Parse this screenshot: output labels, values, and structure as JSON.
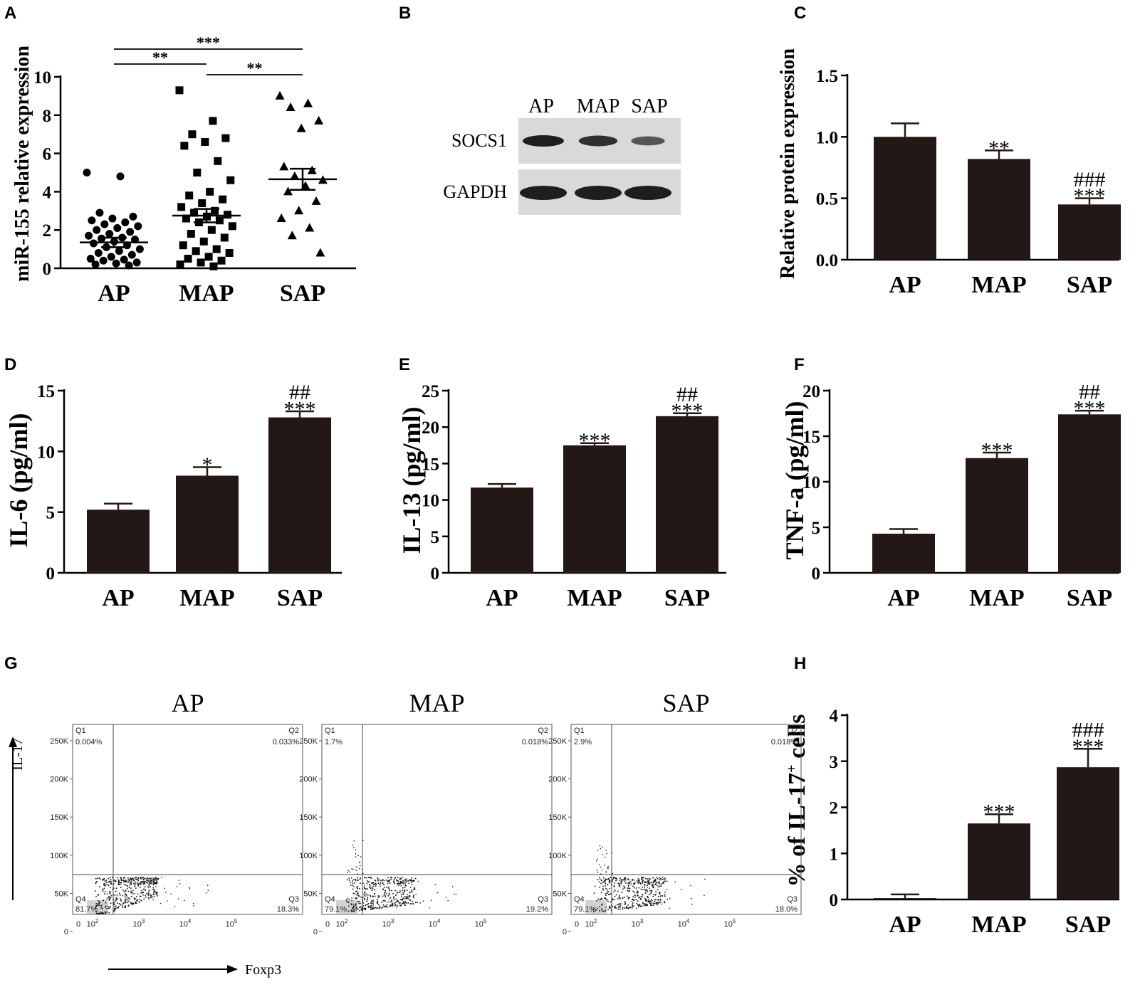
{
  "colors": {
    "bar": "#231815",
    "axis": "#000000",
    "blot_bg": "#d9d9d9",
    "band": "#141414"
  },
  "chart_data": [
    {
      "panel": "A",
      "type": "scatter",
      "ylabel": "miR-155 relative expression",
      "categories": [
        "AP",
        "MAP",
        "SAP"
      ],
      "ylim": [
        0,
        10
      ],
      "yticks": [
        "0",
        "2",
        "4",
        "6",
        "8",
        "10"
      ],
      "markers": [
        "circle",
        "square",
        "triangle"
      ],
      "means": [
        1.35,
        2.75,
        4.65
      ],
      "sem": [
        0.25,
        0.35,
        0.55
      ],
      "points": [
        [
          5.0,
          4.8,
          2.9,
          2.7,
          2.6,
          2.5,
          2.4,
          2.3,
          2.2,
          2.1,
          2.0,
          1.9,
          1.8,
          1.7,
          1.6,
          1.55,
          1.5,
          1.4,
          1.3,
          1.2,
          1.1,
          1.0,
          0.9,
          0.8,
          0.7,
          0.6,
          0.5,
          0.45,
          0.4,
          0.3,
          0.25,
          0.2,
          0.15
        ],
        [
          9.3,
          7.7,
          7.0,
          6.8,
          6.6,
          6.4,
          5.6,
          5.0,
          4.6,
          4.0,
          3.8,
          3.6,
          3.4,
          3.2,
          3.0,
          2.9,
          2.8,
          2.7,
          2.6,
          2.5,
          2.4,
          2.2,
          2.0,
          1.8,
          1.6,
          1.4,
          1.2,
          1.0,
          0.9,
          0.8,
          0.6,
          0.5,
          0.4,
          0.3,
          0.2,
          0.1
        ],
        [
          9.0,
          8.6,
          8.4,
          7.7,
          7.3,
          5.3,
          5.1,
          4.8,
          4.6,
          4.3,
          4.0,
          3.5,
          3.0,
          2.6,
          2.1,
          1.7,
          0.8
        ]
      ],
      "significance": [
        {
          "pair": [
            "AP",
            "SAP"
          ],
          "label": "***"
        },
        {
          "pair": [
            "AP",
            "MAP"
          ],
          "label": "**"
        },
        {
          "pair": [
            "MAP",
            "SAP"
          ],
          "label": "**"
        }
      ]
    },
    {
      "panel": "C",
      "type": "bar",
      "ylabel": "Relative protein expression",
      "categories": [
        "AP",
        "MAP",
        "SAP"
      ],
      "ylim": [
        0,
        1.5
      ],
      "yticks": [
        "0.0",
        "0.5",
        "1.0",
        "1.5"
      ],
      "values": [
        1.0,
        0.82,
        0.45
      ],
      "errors": [
        0.11,
        0.07,
        0.05
      ],
      "annotations": [
        "",
        "**",
        "***"
      ],
      "annotations2": [
        "",
        "",
        "###"
      ]
    },
    {
      "panel": "D",
      "type": "bar",
      "ylabel": "IL-6 (pg/ml)",
      "categories": [
        "AP",
        "MAP",
        "SAP"
      ],
      "ylim": [
        0,
        15
      ],
      "yticks": [
        "0",
        "5",
        "10",
        "15"
      ],
      "values": [
        5.2,
        8.0,
        12.8
      ],
      "errors": [
        0.5,
        0.7,
        0.5
      ],
      "annotations": [
        "",
        "*",
        "***"
      ],
      "annotations2": [
        "",
        "",
        "##"
      ]
    },
    {
      "panel": "E",
      "type": "bar",
      "ylabel": "IL-13 (pg/ml)",
      "categories": [
        "AP",
        "MAP",
        "SAP"
      ],
      "ylim": [
        0,
        25
      ],
      "yticks": [
        "0",
        "5",
        "10",
        "15",
        "20",
        "25"
      ],
      "values": [
        11.7,
        17.5,
        21.5
      ],
      "errors": [
        0.5,
        0.3,
        0.4
      ],
      "annotations": [
        "",
        "***",
        "***"
      ],
      "annotations2": [
        "",
        "",
        "##"
      ]
    },
    {
      "panel": "F",
      "type": "bar",
      "ylabel": "TNF-a (pg/ml)",
      "categories": [
        "AP",
        "MAP",
        "SAP"
      ],
      "ylim": [
        0,
        20
      ],
      "yticks": [
        "0",
        "5",
        "10",
        "15",
        "20"
      ],
      "values": [
        4.3,
        12.6,
        17.4
      ],
      "errors": [
        0.5,
        0.6,
        0.4
      ],
      "annotations": [
        "",
        "***",
        "***"
      ],
      "annotations2": [
        "",
        "",
        "##"
      ]
    },
    {
      "panel": "H",
      "type": "bar",
      "ylabel": "% of IL-17",
      "ylabel_sup": "+",
      "ylabel_tail": " cells",
      "categories": [
        "AP",
        "MAP",
        "SAP"
      ],
      "ylim": [
        0,
        4
      ],
      "yticks": [
        "0",
        "1",
        "2",
        "3",
        "4"
      ],
      "values": [
        0.03,
        1.65,
        2.87
      ],
      "errors": [
        0.08,
        0.2,
        0.4
      ],
      "annotations": [
        "",
        "***",
        "***"
      ],
      "annotations2": [
        "",
        "",
        "###"
      ]
    }
  ],
  "panels": {
    "A": "A",
    "B": "B",
    "C": "C",
    "D": "D",
    "E": "E",
    "F": "F",
    "G": "G",
    "H": "H"
  },
  "blot": {
    "lanes": [
      "AP",
      "MAP",
      "SAP"
    ],
    "rows": [
      "SOCS1",
      "GAPDH"
    ],
    "socs1_intensity": [
      1.0,
      0.85,
      0.55
    ],
    "gapdh_intensity": [
      1.0,
      1.0,
      1.0
    ]
  },
  "flow": {
    "x_axis_label": "Foxp3",
    "y_axis_label": "IL-17",
    "y_ticks": [
      "250K",
      "200K",
      "150K",
      "100K",
      "50K",
      "0"
    ],
    "x_ticks": [
      "0",
      "10",
      "10",
      "10",
      "10"
    ],
    "x_tick_exps": [
      "",
      "2",
      "3",
      "4",
      "5"
    ],
    "quadrant_names": [
      "Q1",
      "Q2",
      "Q3",
      "Q4"
    ],
    "plots": [
      {
        "title": "AP",
        "q1": "0.004%",
        "q2": "0.033%",
        "q3": "18.3%",
        "q4": "81.7%"
      },
      {
        "title": "MAP",
        "q1": "1.7%",
        "q2": "0.018%",
        "q3": "19.2%",
        "q4": "79.1%"
      },
      {
        "title": "SAP",
        "q1": "2.9%",
        "q2": "0.018%",
        "q3": "18.0%",
        "q4": "79.1%"
      }
    ]
  }
}
